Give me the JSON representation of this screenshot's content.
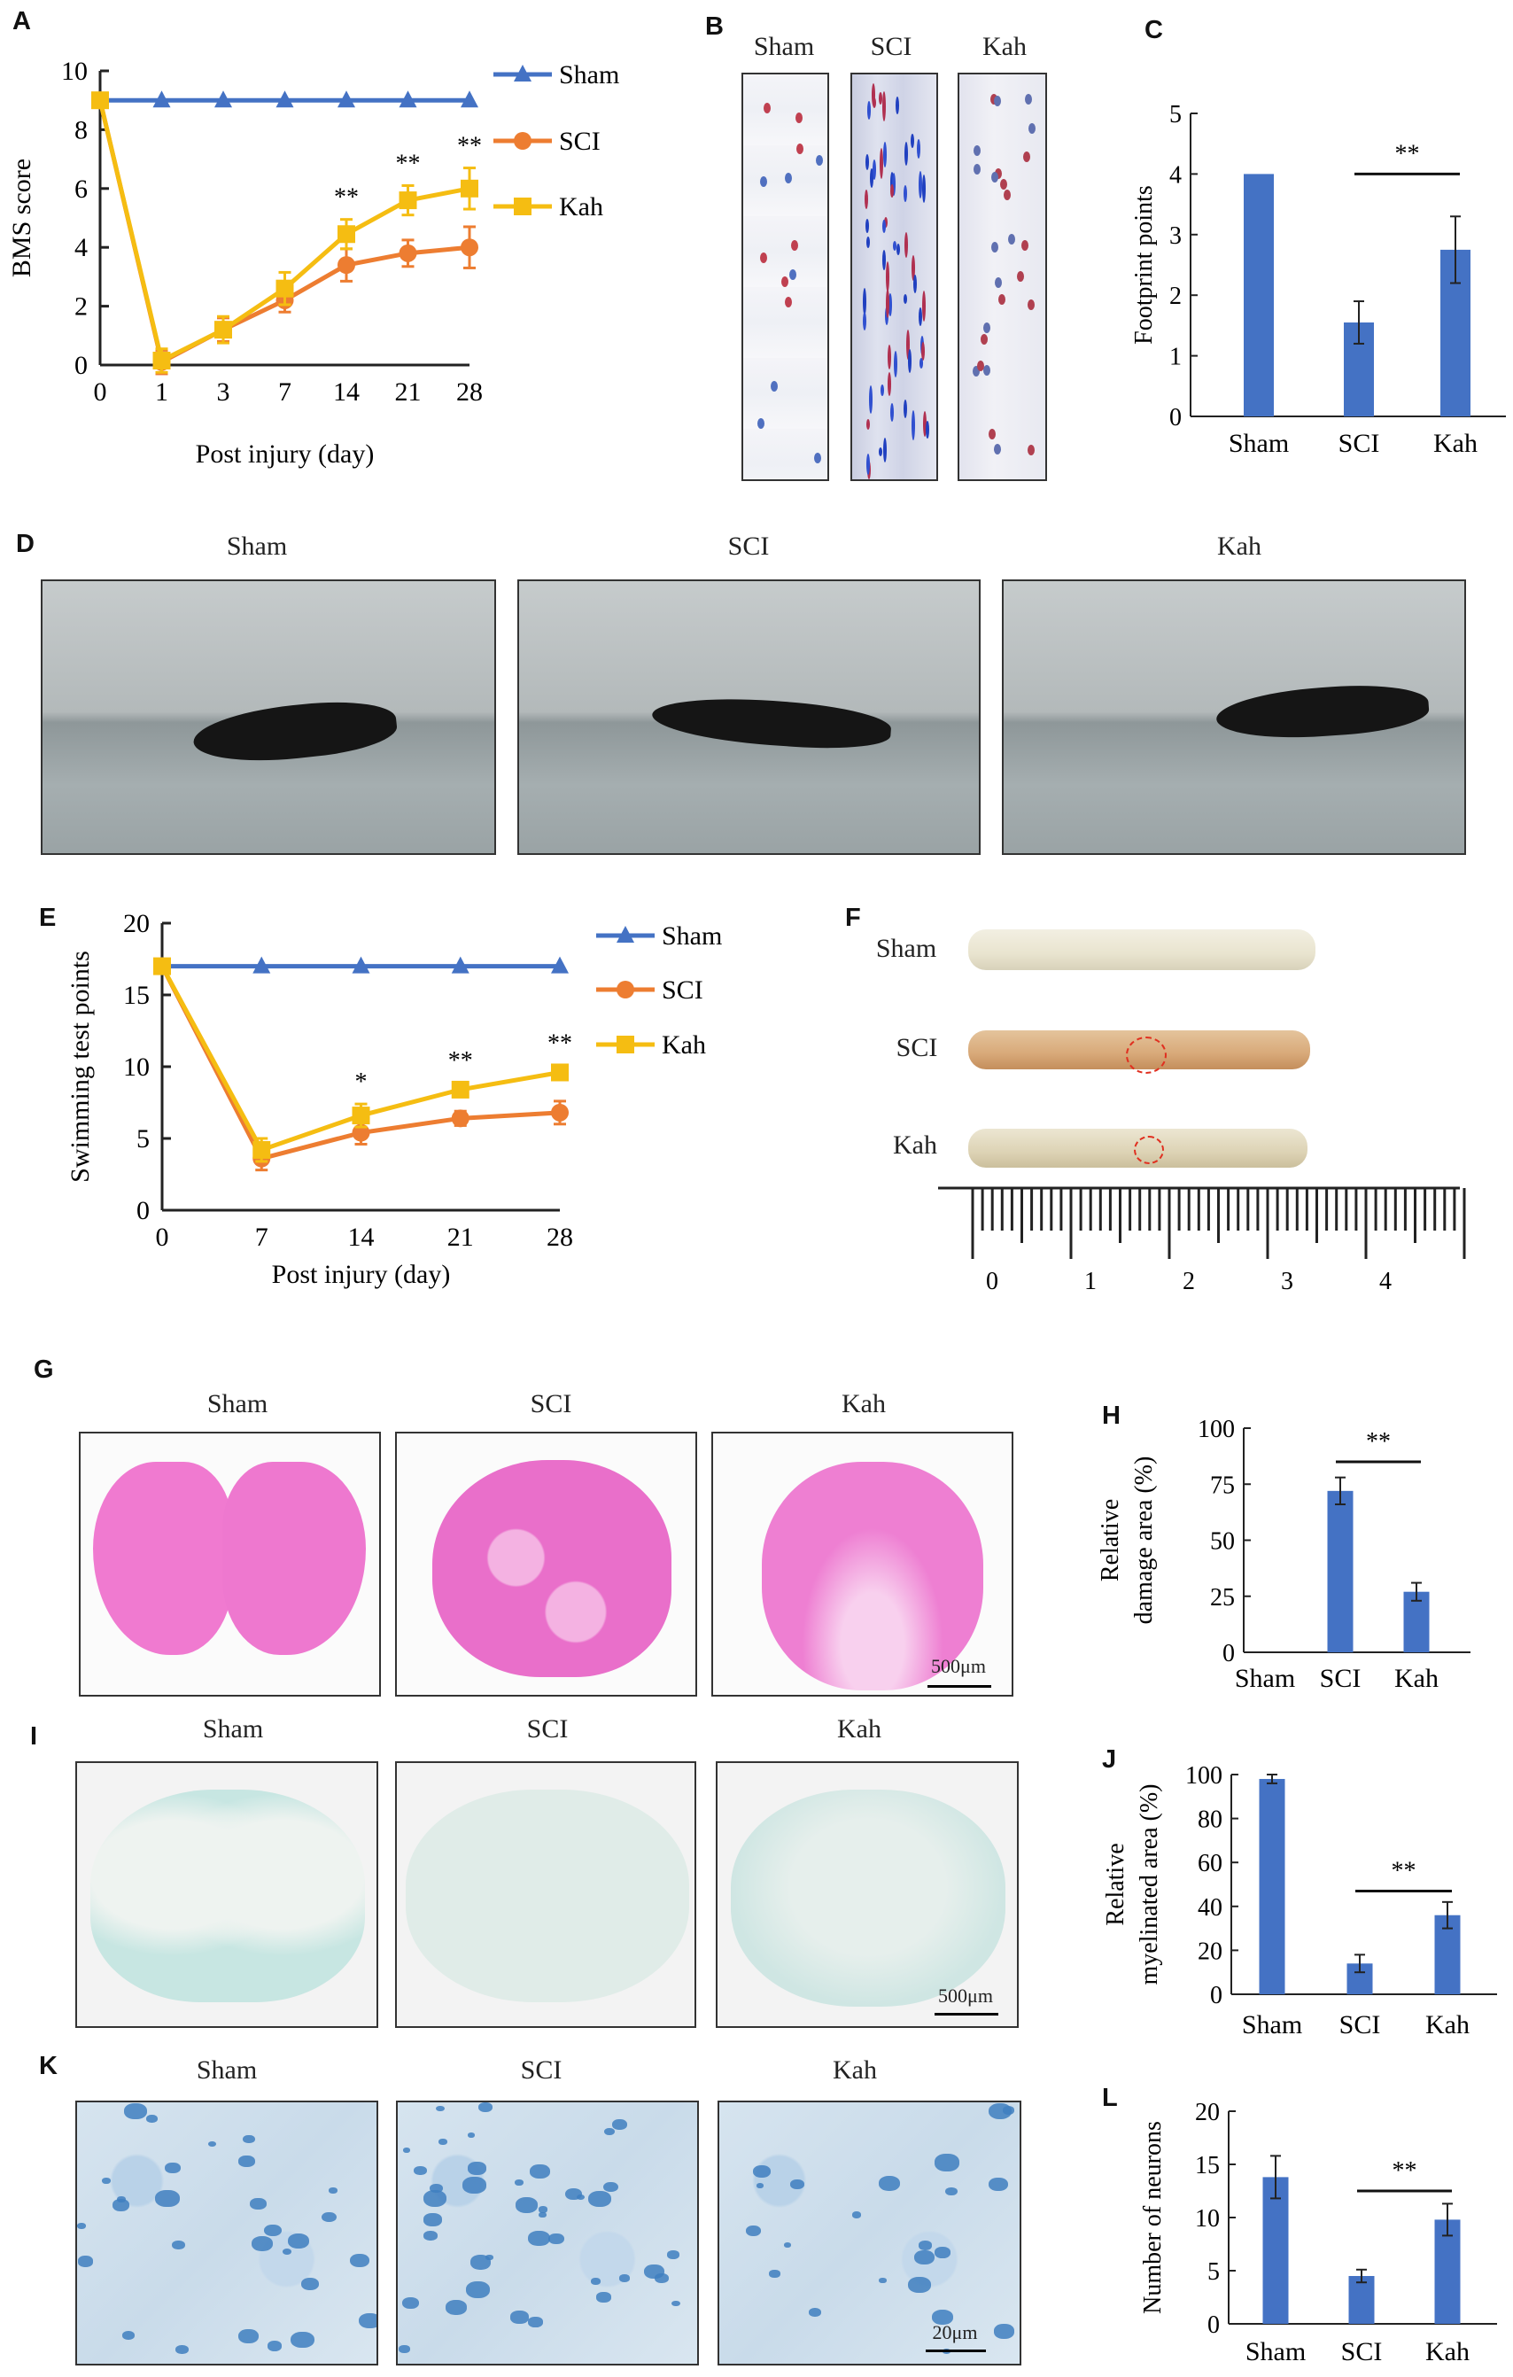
{
  "panels": {
    "A": "A",
    "B": "B",
    "C": "C",
    "D": "D",
    "E": "E",
    "F": "F",
    "G": "G",
    "H": "H",
    "I": "I",
    "J": "J",
    "K": "K",
    "L": "L"
  },
  "groups": [
    "Sham",
    "SCI",
    "Kah"
  ],
  "scale_bars": {
    "G": "500μm",
    "I": "500μm",
    "K": "20μm"
  },
  "ruler_labels": [
    "0",
    "1",
    "2",
    "3",
    "4"
  ],
  "colors": {
    "Sham": "#4472c4",
    "SCI": "#ed7d31",
    "Kah": "#f5bd12",
    "bar": "#4472c4",
    "lesion": "#e03020"
  },
  "chart_data": [
    {
      "id": "A",
      "type": "line",
      "xlabel": "Post injury (day)",
      "ylabel": "BMS score",
      "ylim": [
        0,
        10
      ],
      "yticks": [
        0,
        2,
        4,
        6,
        8,
        10
      ],
      "x": [
        0,
        1,
        3,
        7,
        14,
        21,
        28
      ],
      "x_spacing": "categorical",
      "legend": "right",
      "series": [
        {
          "name": "Sham",
          "marker": "triangle",
          "values": [
            9,
            9,
            9,
            9,
            9,
            9,
            9
          ],
          "errors": [
            0,
            0,
            0,
            0,
            0,
            0,
            0
          ]
        },
        {
          "name": "SCI",
          "marker": "circle",
          "values": [
            9,
            0.1,
            1.2,
            2.2,
            3.4,
            3.8,
            4.0
          ],
          "errors": [
            0,
            0.4,
            0.4,
            0.4,
            0.55,
            0.45,
            0.7
          ]
        },
        {
          "name": "Kah",
          "marker": "square",
          "values": [
            9,
            0.15,
            1.2,
            2.6,
            4.45,
            5.6,
            6.0
          ],
          "errors": [
            0,
            0.4,
            0.45,
            0.55,
            0.5,
            0.5,
            0.7
          ]
        }
      ],
      "annotations": [
        {
          "x": 14,
          "text": "**"
        },
        {
          "x": 21,
          "text": "**"
        },
        {
          "x": 28,
          "text": "**"
        }
      ]
    },
    {
      "id": "C",
      "type": "bar",
      "xlabel": "",
      "ylabel": "Footprint points",
      "ylim": [
        0,
        5
      ],
      "yticks": [
        0,
        1,
        2,
        3,
        4,
        5
      ],
      "categories": [
        "Sham",
        "SCI",
        "Kah"
      ],
      "values": [
        4.0,
        1.55,
        2.75
      ],
      "errors": [
        0,
        0.35,
        0.55
      ],
      "significance": {
        "between": [
          "SCI",
          "Kah"
        ],
        "text": "**",
        "level": 4.0
      }
    },
    {
      "id": "E",
      "type": "line",
      "xlabel": "Post injury (day)",
      "ylabel": "Swimming test points",
      "ylim": [
        0,
        20
      ],
      "yticks": [
        0,
        5,
        10,
        15,
        20
      ],
      "x": [
        0,
        7,
        14,
        21,
        28
      ],
      "x_spacing": "linear",
      "legend": "right",
      "series": [
        {
          "name": "Sham",
          "marker": "triangle",
          "values": [
            17,
            17,
            17,
            17,
            17
          ],
          "errors": [
            0,
            0,
            0,
            0,
            0
          ]
        },
        {
          "name": "SCI",
          "marker": "circle",
          "values": [
            17,
            3.6,
            5.4,
            6.4,
            6.8
          ],
          "errors": [
            0,
            0.8,
            0.8,
            0.5,
            0.8
          ]
        },
        {
          "name": "Kah",
          "marker": "square",
          "values": [
            17,
            4.2,
            6.6,
            8.4,
            9.6
          ],
          "errors": [
            0,
            0.8,
            0.8,
            0.5,
            0.5
          ]
        }
      ],
      "annotations": [
        {
          "x": 14,
          "text": "*"
        },
        {
          "x": 21,
          "text": "**"
        },
        {
          "x": 28,
          "text": "**"
        }
      ]
    },
    {
      "id": "H",
      "type": "bar",
      "ylabel_lines": [
        "Relative",
        "damage area (%)"
      ],
      "ylim": [
        0,
        100
      ],
      "yticks": [
        0,
        25,
        50,
        75,
        100
      ],
      "categories": [
        "Sham",
        "SCI",
        "Kah"
      ],
      "values": [
        0,
        72,
        27
      ],
      "errors": [
        0,
        6,
        4
      ],
      "significance": {
        "between": [
          "SCI",
          "Kah"
        ],
        "text": "**",
        "level": 85
      }
    },
    {
      "id": "J",
      "type": "bar",
      "ylabel_lines": [
        "Relative",
        "myelinated area (%)"
      ],
      "ylim": [
        0,
        100
      ],
      "yticks": [
        0,
        20,
        40,
        60,
        80,
        100
      ],
      "categories": [
        "Sham",
        "SCI",
        "Kah"
      ],
      "values": [
        98,
        14,
        36
      ],
      "errors": [
        2,
        4,
        6
      ],
      "significance": {
        "between": [
          "SCI",
          "Kah"
        ],
        "text": "**",
        "level": 47
      }
    },
    {
      "id": "L",
      "type": "bar",
      "ylabel_lines": [
        "Number of neurons"
      ],
      "ylim": [
        0,
        20
      ],
      "yticks": [
        0,
        5,
        10,
        15,
        20
      ],
      "categories": [
        "Sham",
        "SCI",
        "Kah"
      ],
      "values": [
        13.8,
        4.5,
        9.8
      ],
      "errors": [
        2.0,
        0.6,
        1.5
      ],
      "significance": {
        "between": [
          "SCI",
          "Kah"
        ],
        "text": "**",
        "level": 12.5
      }
    }
  ]
}
